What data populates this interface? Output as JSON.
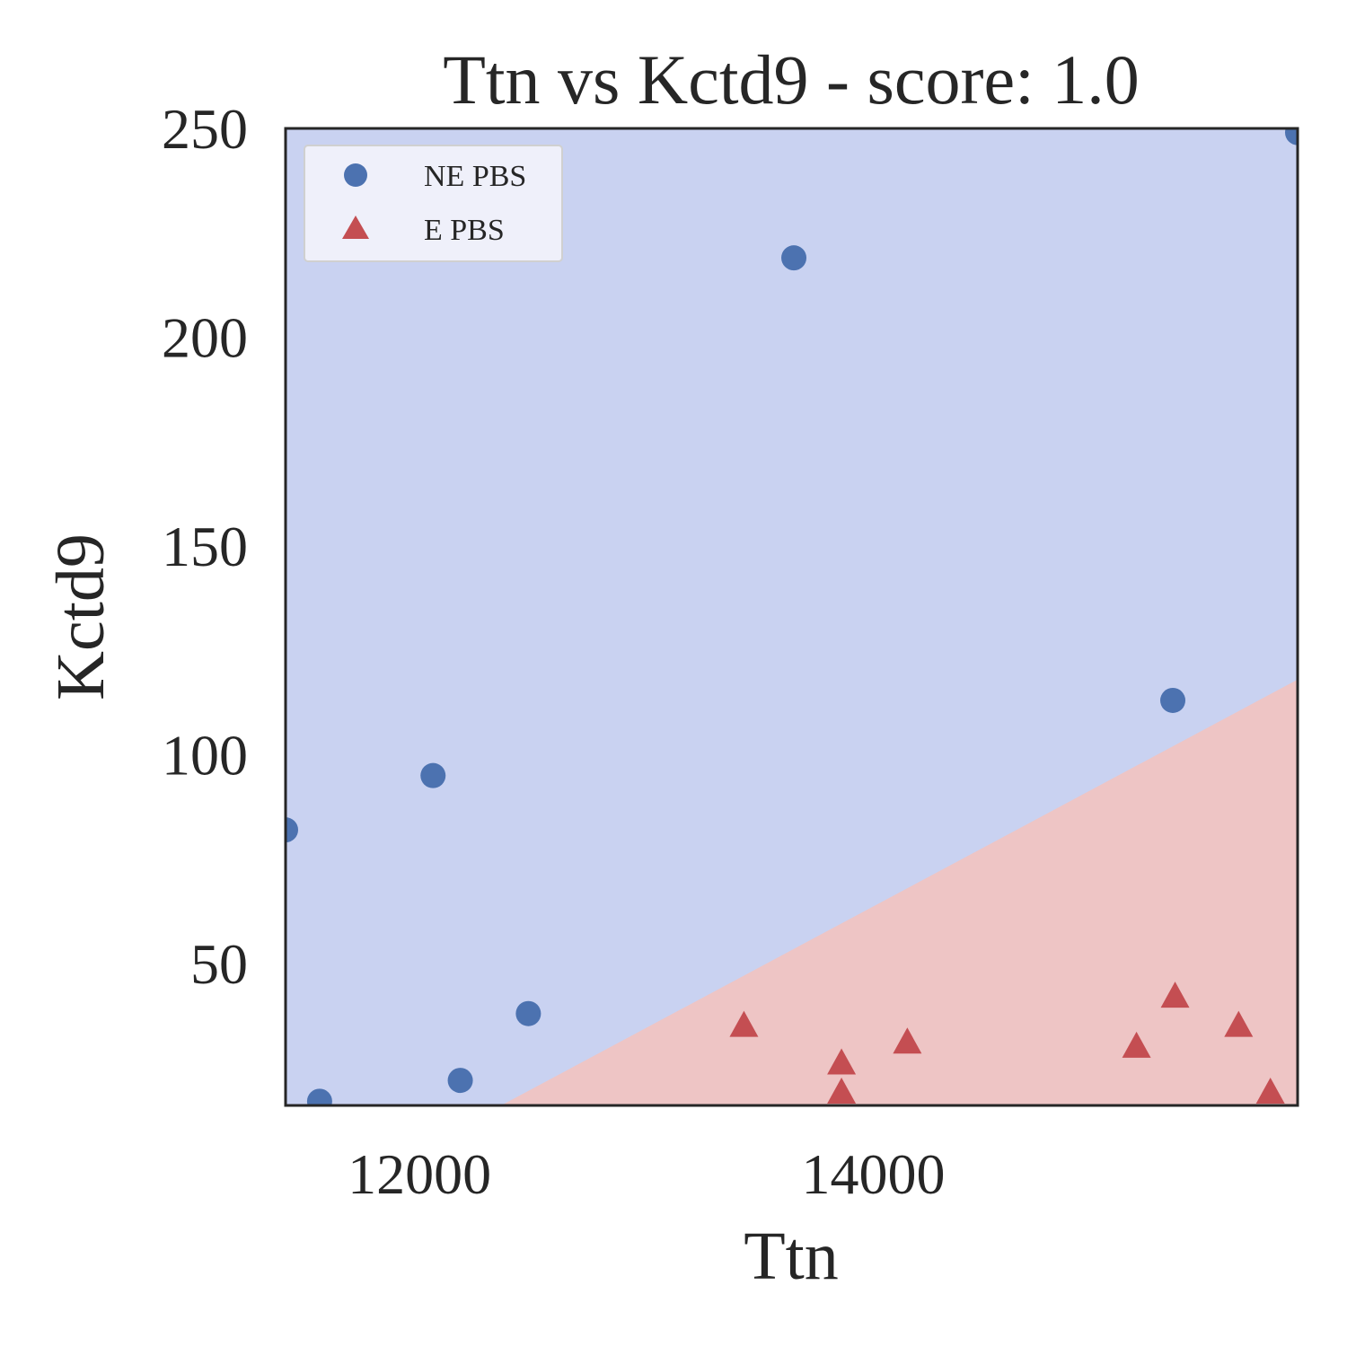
{
  "chart_data": {
    "type": "scatter",
    "title": "Ttn vs Kctd9 - score: 1.0",
    "xlabel": "Ttn",
    "ylabel": "Kctd9",
    "xlim": [
      11410,
      15870
    ],
    "ylim": [
      16,
      250
    ],
    "xticks": [
      12000,
      14000
    ],
    "yticks": [
      50,
      100,
      150,
      200,
      250
    ],
    "grid": false,
    "legend_position": "top-left",
    "colors": {
      "ne_marker": "#4C72B0",
      "e_marker": "#C44E52",
      "ne_region": "#C9D2F1",
      "e_region": "#EEC5C5",
      "frame": "#262626"
    },
    "decision_boundary": {
      "description": "linear",
      "points": [
        [
          12360,
          16
        ],
        [
          15870,
          118
        ]
      ]
    },
    "series": [
      {
        "name": "NE PBS",
        "marker": "circle",
        "points": [
          [
            11410,
            82
          ],
          [
            11560,
            17
          ],
          [
            12060,
            95
          ],
          [
            12180,
            22
          ],
          [
            12480,
            38
          ],
          [
            13650,
            219
          ],
          [
            15320,
            113
          ],
          [
            15870,
            249
          ]
        ]
      },
      {
        "name": "E PBS",
        "marker": "triangle",
        "points": [
          [
            13430,
            35
          ],
          [
            13860,
            26
          ],
          [
            13860,
            19
          ],
          [
            14150,
            31
          ],
          [
            15160,
            30
          ],
          [
            15330,
            42
          ],
          [
            15610,
            35
          ],
          [
            15750,
            19
          ]
        ]
      }
    ]
  }
}
